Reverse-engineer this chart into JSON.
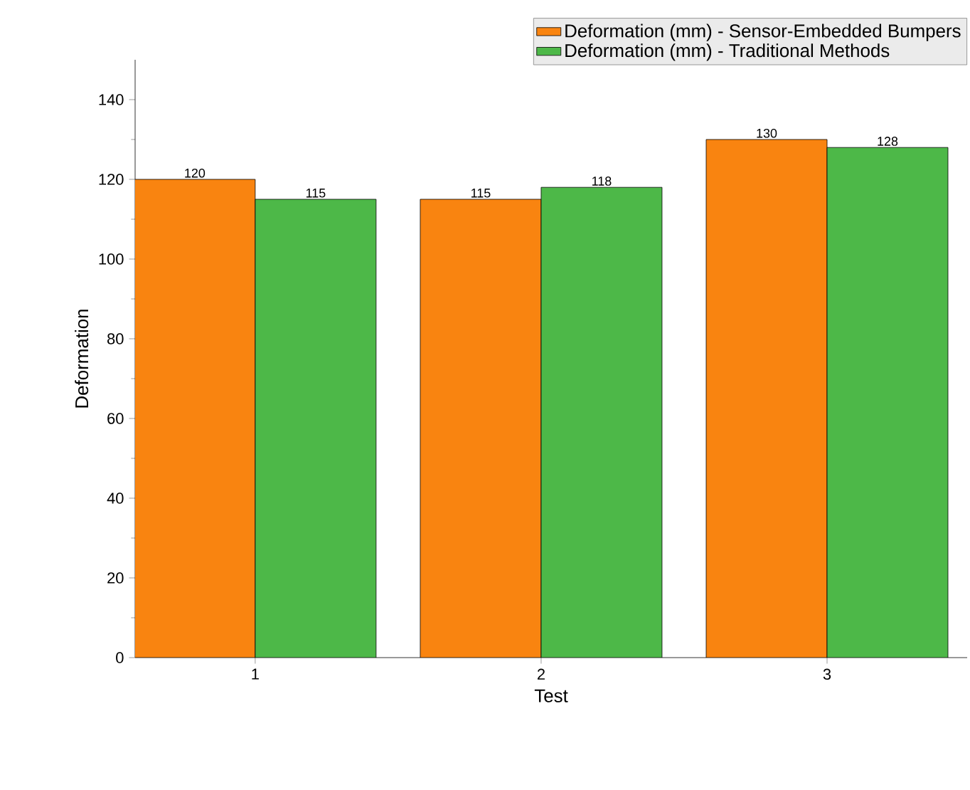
{
  "chart_data": {
    "type": "bar",
    "xlabel": "Test",
    "ylabel": "Deformation",
    "categories": [
      "1",
      "2",
      "3"
    ],
    "series": [
      {
        "name": "Deformation (mm) - Sensor-Embedded Bumpers",
        "color": "#f98410",
        "values": [
          120,
          115,
          130
        ]
      },
      {
        "name": "Deformation (mm) - Traditional Methods",
        "color": "#4db848",
        "values": [
          115,
          118,
          128
        ]
      }
    ],
    "ylim": [
      0,
      150
    ],
    "yticks": [
      0,
      20,
      40,
      60,
      80,
      100,
      120,
      140
    ],
    "data_labels": true,
    "legend": "top right",
    "grid": false
  }
}
